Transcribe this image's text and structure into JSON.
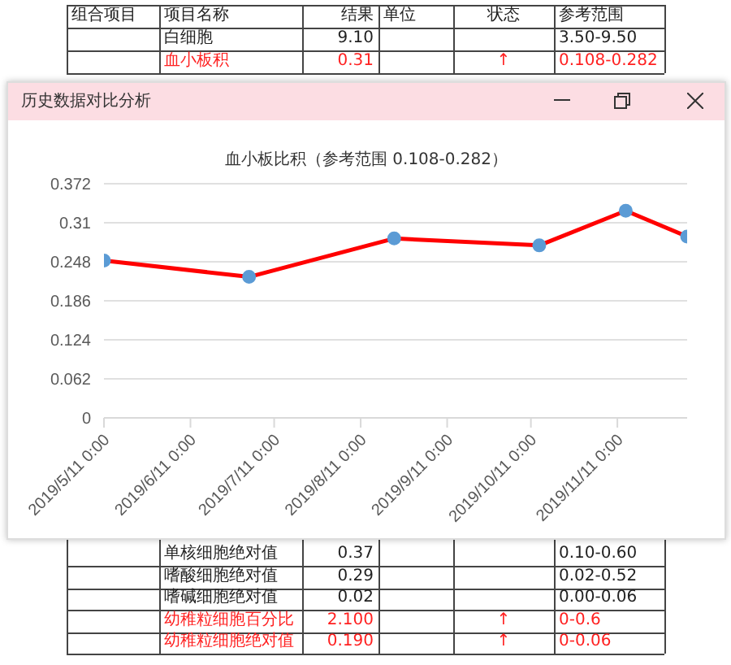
{
  "chart_data": {
    "type": "line",
    "title": "历史数据对比分析",
    "subtitle": "血小板比积（参考范围 0.108-0.282）",
    "x": [
      "2019-05-11",
      "2019-07-02",
      "2019-08-23",
      "2019-10-14",
      "2019-11-14",
      "2019-12-06"
    ],
    "series": [
      {
        "color": "#ff0000",
        "values": [
          0.25,
          0.224,
          0.285,
          0.274,
          0.329,
          0.288
        ]
      }
    ],
    "xlim": [
      "2019-05-11",
      "2019-12-06"
    ],
    "xticks": [
      {
        "value": "2019-05-11",
        "label": "2019/5/11 0:00"
      },
      {
        "value": "2019-06-11",
        "label": "2019/6/11 0:00"
      },
      {
        "value": "2019-07-11",
        "label": "2019/7/11 0:00"
      },
      {
        "value": "2019-08-11",
        "label": "2019/8/11 0:00"
      },
      {
        "value": "2019-09-11",
        "label": "2019/9/11 0:00"
      },
      {
        "value": "2019-10-11",
        "label": "2019/10/11 0:00"
      },
      {
        "value": "2019-11-11",
        "label": "2019/11/11 0:00"
      }
    ],
    "ylim": [
      0,
      0.372
    ],
    "yticks": [
      0,
      0.062,
      0.124,
      0.186,
      0.248,
      0.31,
      0.372
    ],
    "grid": "y",
    "marker": "circle",
    "line_style": "solid",
    "legend": false,
    "annotations": [
      "组合项目",
      "项目名称",
      "结果",
      "单位",
      "状态",
      "参考范围",
      "白细胞",
      "9.10",
      "3.50-9.50",
      "血小板积",
      "0.31",
      "↑",
      "0.108-0.282",
      "单核细胞绝对值",
      "0.37",
      "0.10-0.60",
      "嗜酸细胞绝对值",
      "0.29",
      "0.02-0.52",
      "嗜碱细胞绝对值",
      "0.02",
      "0.00-0.06",
      "幼稚粒细胞百分比",
      "2.100",
      "↑",
      "0-0.6",
      "幼稚粒细胞绝对值",
      "0.190",
      "↑",
      "0-0.06"
    ]
  }
}
